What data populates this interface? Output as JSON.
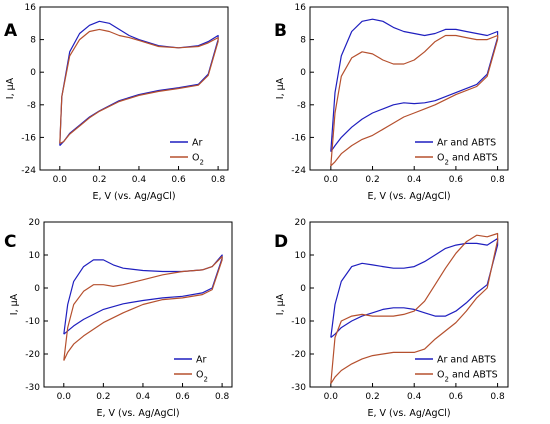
{
  "colors": {
    "ar": "#1f1fbf",
    "o2": "#b5502e",
    "axis": "#000000"
  },
  "chart_data": [
    {
      "type": "line",
      "panel": "A",
      "xlabel": "E, V (vs. Ag/AgCl)",
      "ylabel": "I, μA",
      "xlim": [
        -0.1,
        0.85
      ],
      "ylim": [
        -24,
        16
      ],
      "xticks": [
        "0.0",
        "0.2",
        "0.4",
        "0.6",
        "0.8"
      ],
      "yticks": [
        "16",
        "8",
        "0",
        "-8",
        "-16",
        "-24"
      ],
      "legend_position": "bottom-right",
      "series": [
        {
          "name": "Ar",
          "color_key": "ar",
          "x": [
            0.0,
            0.01,
            0.05,
            0.1,
            0.15,
            0.2,
            0.25,
            0.3,
            0.35,
            0.4,
            0.5,
            0.6,
            0.7,
            0.75,
            0.8,
            0.8,
            0.75,
            0.7,
            0.6,
            0.5,
            0.4,
            0.3,
            0.2,
            0.15,
            0.1,
            0.05,
            0.02,
            0.0
          ],
          "y": [
            -18,
            -6,
            5,
            9.5,
            11.5,
            12.5,
            12,
            10.5,
            9,
            8,
            6.5,
            6,
            6.5,
            7.5,
            9,
            8,
            -0.5,
            -3,
            -3.8,
            -4.5,
            -5.5,
            -7,
            -9.5,
            -11,
            -13,
            -15,
            -17,
            -18
          ]
        },
        {
          "name": "O2",
          "color_key": "o2",
          "x": [
            0.0,
            0.01,
            0.05,
            0.1,
            0.15,
            0.2,
            0.25,
            0.3,
            0.35,
            0.4,
            0.5,
            0.6,
            0.7,
            0.75,
            0.8,
            0.8,
            0.75,
            0.7,
            0.6,
            0.5,
            0.4,
            0.3,
            0.2,
            0.15,
            0.1,
            0.05,
            0.02,
            0.0
          ],
          "y": [
            -17.5,
            -6,
            4,
            8,
            10,
            10.5,
            10,
            9,
            8.5,
            7.8,
            6.3,
            6,
            6.3,
            7.2,
            8.5,
            7.5,
            -0.8,
            -3.2,
            -4,
            -4.7,
            -5.7,
            -7.2,
            -9.6,
            -11.2,
            -13.2,
            -15.2,
            -17,
            -17.5
          ]
        }
      ]
    },
    {
      "type": "line",
      "panel": "B",
      "xlabel": "E, V (vs. Ag/AgCl)",
      "ylabel": "I, μA",
      "xlim": [
        -0.1,
        0.85
      ],
      "ylim": [
        -24,
        16
      ],
      "xticks": [
        "0.0",
        "0.2",
        "0.4",
        "0.6",
        "0.8"
      ],
      "yticks": [
        "16",
        "8",
        "0",
        "-8",
        "-16",
        "-24"
      ],
      "legend_position": "bottom-right",
      "series": [
        {
          "name": "Ar and ABTS",
          "color_key": "ar",
          "x": [
            0.0,
            0.02,
            0.05,
            0.1,
            0.15,
            0.2,
            0.25,
            0.3,
            0.35,
            0.4,
            0.45,
            0.5,
            0.55,
            0.6,
            0.65,
            0.7,
            0.75,
            0.8,
            0.8,
            0.75,
            0.7,
            0.6,
            0.5,
            0.45,
            0.4,
            0.35,
            0.3,
            0.25,
            0.2,
            0.15,
            0.1,
            0.05,
            0.02,
            0.0
          ],
          "y": [
            -19.5,
            -5,
            4,
            10,
            12.5,
            13,
            12.5,
            11,
            10,
            9.5,
            9,
            9.5,
            10.5,
            10.5,
            10,
            9.5,
            9,
            10,
            8.5,
            -0.5,
            -3,
            -5,
            -7,
            -7.5,
            -7.7,
            -7.5,
            -8,
            -9,
            -10,
            -11.5,
            -13.5,
            -16,
            -18,
            -19.5
          ]
        },
        {
          "name": "O2 and ABTS",
          "color_key": "o2",
          "x": [
            0.0,
            0.02,
            0.05,
            0.1,
            0.15,
            0.2,
            0.25,
            0.3,
            0.35,
            0.4,
            0.45,
            0.5,
            0.55,
            0.6,
            0.65,
            0.7,
            0.75,
            0.8,
            0.8,
            0.75,
            0.7,
            0.6,
            0.5,
            0.45,
            0.4,
            0.35,
            0.3,
            0.25,
            0.2,
            0.15,
            0.1,
            0.05,
            0.02,
            0.0
          ],
          "y": [
            -23,
            -10,
            -1,
            3.5,
            5,
            4.5,
            3,
            2,
            2,
            3,
            5,
            7.5,
            9,
            9,
            8.5,
            8,
            8,
            9,
            8,
            -1,
            -3.5,
            -5.5,
            -8,
            -9,
            -10,
            -11,
            -12.5,
            -14,
            -15.5,
            -16.5,
            -18,
            -20,
            -22,
            -23
          ]
        }
      ]
    },
    {
      "type": "line",
      "panel": "C",
      "xlabel": "E, V (vs. Ag/AgCl)",
      "ylabel": "I, μA",
      "xlim": [
        -0.1,
        0.85
      ],
      "ylim": [
        -30,
        20
      ],
      "xticks": [
        "0.0",
        "0.2",
        "0.4",
        "0.6",
        "0.8"
      ],
      "yticks": [
        "20",
        "10",
        "0",
        "-10",
        "-20",
        "-30"
      ],
      "legend_position": "bottom-right",
      "series": [
        {
          "name": "Ar",
          "color_key": "ar",
          "x": [
            0.0,
            0.02,
            0.05,
            0.1,
            0.15,
            0.2,
            0.25,
            0.3,
            0.4,
            0.5,
            0.6,
            0.7,
            0.75,
            0.8,
            0.8,
            0.75,
            0.7,
            0.6,
            0.5,
            0.4,
            0.3,
            0.2,
            0.15,
            0.1,
            0.05,
            0.02,
            0.0
          ],
          "y": [
            -14,
            -5,
            2,
            6.5,
            8.5,
            8.5,
            7,
            6,
            5.3,
            5,
            5,
            5.5,
            6.5,
            10,
            9,
            0,
            -1.5,
            -2.5,
            -3,
            -3.8,
            -4.8,
            -6.5,
            -8,
            -9.5,
            -11.5,
            -13,
            -14
          ]
        },
        {
          "name": "O2",
          "color_key": "o2",
          "x": [
            0.0,
            0.02,
            0.05,
            0.1,
            0.15,
            0.2,
            0.25,
            0.3,
            0.4,
            0.5,
            0.6,
            0.7,
            0.75,
            0.8,
            0.8,
            0.75,
            0.7,
            0.6,
            0.5,
            0.4,
            0.3,
            0.2,
            0.15,
            0.1,
            0.05,
            0.02,
            0.0
          ],
          "y": [
            -22,
            -12,
            -5,
            -1,
            1,
            1,
            0.5,
            1,
            2.5,
            4,
            5,
            5.5,
            6.5,
            9.5,
            8.5,
            -0.5,
            -2,
            -3,
            -3.5,
            -5,
            -7.5,
            -10.5,
            -12.5,
            -14.5,
            -17,
            -19.5,
            -22
          ]
        }
      ]
    },
    {
      "type": "line",
      "panel": "D",
      "xlabel": "E, V (vs. Ag/AgCl)",
      "ylabel": "I, μA",
      "xlim": [
        -0.1,
        0.85
      ],
      "ylim": [
        -30,
        20
      ],
      "xticks": [
        "0.0",
        "0.2",
        "0.4",
        "0.6",
        "0.8"
      ],
      "yticks": [
        "20",
        "10",
        "0",
        "-10",
        "-20",
        "-30"
      ],
      "legend_position": "bottom-right",
      "series": [
        {
          "name": "Ar and ABTS",
          "color_key": "ar",
          "x": [
            0.0,
            0.02,
            0.05,
            0.1,
            0.15,
            0.2,
            0.25,
            0.3,
            0.35,
            0.4,
            0.45,
            0.5,
            0.55,
            0.6,
            0.65,
            0.7,
            0.75,
            0.8,
            0.8,
            0.75,
            0.7,
            0.65,
            0.6,
            0.55,
            0.5,
            0.45,
            0.4,
            0.35,
            0.3,
            0.25,
            0.2,
            0.15,
            0.1,
            0.05,
            0.02,
            0.0
          ],
          "y": [
            -15,
            -5,
            2,
            6.5,
            7.5,
            7,
            6.5,
            6,
            6,
            6.5,
            8,
            10,
            12,
            13,
            13.5,
            13.5,
            13,
            15,
            13,
            1,
            -1.5,
            -4.5,
            -7,
            -8.5,
            -8.5,
            -7.5,
            -6.5,
            -6,
            -6,
            -6.5,
            -7.5,
            -8.5,
            -10,
            -12,
            -14,
            -15
          ]
        },
        {
          "name": "O2 and ABTS",
          "color_key": "o2",
          "x": [
            0.0,
            0.02,
            0.05,
            0.1,
            0.15,
            0.2,
            0.25,
            0.3,
            0.35,
            0.4,
            0.45,
            0.5,
            0.55,
            0.6,
            0.65,
            0.7,
            0.75,
            0.8,
            0.8,
            0.75,
            0.7,
            0.65,
            0.6,
            0.55,
            0.5,
            0.45,
            0.4,
            0.35,
            0.3,
            0.25,
            0.2,
            0.15,
            0.1,
            0.05,
            0.02,
            0.0
          ],
          "y": [
            -29,
            -15,
            -10,
            -8.5,
            -8,
            -8.5,
            -8.5,
            -8.5,
            -8,
            -7,
            -4,
            1,
            6,
            10.5,
            14,
            16,
            15.5,
            16.5,
            14.5,
            0,
            -3,
            -7,
            -10.5,
            -13,
            -15.5,
            -18.5,
            -19.5,
            -19.5,
            -19.5,
            -20,
            -20.5,
            -21.5,
            -23,
            -25,
            -27,
            -29
          ]
        }
      ]
    }
  ]
}
